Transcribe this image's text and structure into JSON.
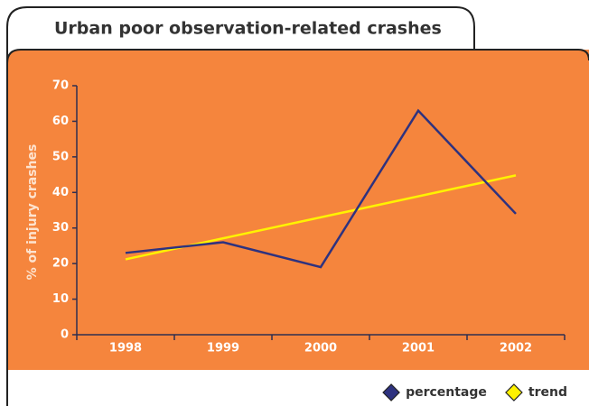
{
  "chart_data": {
    "type": "line",
    "title": "Urban poor observation-related crashes",
    "y_label": "% of injury crashes",
    "categories": [
      "1998",
      "1999",
      "2000",
      "2001",
      "2002"
    ],
    "series": [
      {
        "name": "percentage",
        "color": "#2e327f",
        "values": [
          23,
          26,
          19,
          63,
          34
        ]
      },
      {
        "name": "trend",
        "color": "#fff200",
        "values": [
          21.2,
          27.1,
          33,
          38.9,
          44.8
        ]
      }
    ],
    "ylim": [
      0,
      70
    ],
    "yticks": [
      0,
      10,
      20,
      30,
      40,
      50,
      60,
      70
    ],
    "background": "#f5853d",
    "legend": "bottom-right"
  }
}
